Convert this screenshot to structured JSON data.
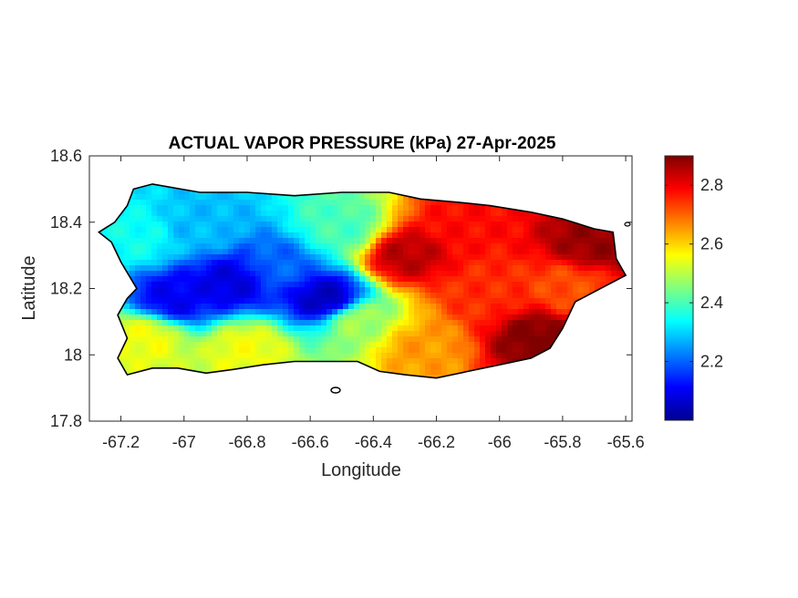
{
  "title": "ACTUAL VAPOR PRESSURE (kPa) 27-Apr-2025",
  "xlabel": "Longitude",
  "ylabel": "Latitude",
  "xlim": [
    -67.3,
    -65.58
  ],
  "ylim": [
    17.8,
    18.6
  ],
  "xticks": [
    {
      "v": -67.2,
      "label": "-67.2"
    },
    {
      "v": -67.0,
      "label": "-67"
    },
    {
      "v": -66.8,
      "label": "-66.8"
    },
    {
      "v": -66.6,
      "label": "-66.6"
    },
    {
      "v": -66.4,
      "label": "-66.4"
    },
    {
      "v": -66.2,
      "label": "-66.2"
    },
    {
      "v": -66.0,
      "label": "-66"
    },
    {
      "v": -65.8,
      "label": "-65.8"
    },
    {
      "v": -65.6,
      "label": "-65.6"
    }
  ],
  "yticks": [
    {
      "v": 17.8,
      "label": "17.8"
    },
    {
      "v": 18.0,
      "label": "18"
    },
    {
      "v": 18.2,
      "label": "18.2"
    },
    {
      "v": 18.4,
      "label": "18.4"
    },
    {
      "v": 18.6,
      "label": "18.6"
    }
  ],
  "colorbar": {
    "colormap": "jet",
    "clim": [
      2.0,
      2.9
    ],
    "ticks": [
      {
        "v": 2.2,
        "label": "2.2"
      },
      {
        "v": 2.4,
        "label": "2.4"
      },
      {
        "v": 2.6,
        "label": "2.6"
      },
      {
        "v": 2.8,
        "label": "2.8"
      }
    ]
  },
  "colors": {
    "outline": "#000000",
    "axes": "#262626",
    "jet": [
      "#00008f",
      "#0000ff",
      "#00ffff",
      "#ffff00",
      "#ff0000",
      "#800000"
    ]
  },
  "island_outline": [
    [
      -67.27,
      18.37
    ],
    [
      -67.22,
      18.4
    ],
    [
      -67.18,
      18.45
    ],
    [
      -67.16,
      18.5
    ],
    [
      -67.1,
      18.515
    ],
    [
      -66.95,
      18.49
    ],
    [
      -66.8,
      18.49
    ],
    [
      -66.65,
      18.48
    ],
    [
      -66.5,
      18.49
    ],
    [
      -66.35,
      18.49
    ],
    [
      -66.25,
      18.47
    ],
    [
      -66.13,
      18.46
    ],
    [
      -66.03,
      18.45
    ],
    [
      -65.9,
      18.43
    ],
    [
      -65.8,
      18.41
    ],
    [
      -65.7,
      18.38
    ],
    [
      -65.64,
      18.37
    ],
    [
      -65.63,
      18.29
    ],
    [
      -65.6,
      18.24
    ],
    [
      -65.66,
      18.21
    ],
    [
      -65.72,
      18.18
    ],
    [
      -65.76,
      18.16
    ],
    [
      -65.8,
      18.08
    ],
    [
      -65.84,
      18.02
    ],
    [
      -65.9,
      17.99
    ],
    [
      -66.0,
      17.97
    ],
    [
      -66.1,
      17.95
    ],
    [
      -66.2,
      17.93
    ],
    [
      -66.3,
      17.94
    ],
    [
      -66.38,
      17.95
    ],
    [
      -66.45,
      17.98
    ],
    [
      -66.55,
      17.98
    ],
    [
      -66.65,
      17.98
    ],
    [
      -66.75,
      17.97
    ],
    [
      -66.85,
      17.955
    ],
    [
      -66.93,
      17.945
    ],
    [
      -67.02,
      17.96
    ],
    [
      -67.1,
      17.96
    ],
    [
      -67.18,
      17.94
    ],
    [
      -67.21,
      17.99
    ],
    [
      -67.18,
      18.05
    ],
    [
      -67.21,
      18.12
    ],
    [
      -67.18,
      18.17
    ],
    [
      -67.15,
      18.2
    ],
    [
      -67.2,
      18.28
    ],
    [
      -67.23,
      18.34
    ]
  ],
  "vapor_field": [
    {
      "lon": -66.85,
      "lat": 18.22,
      "val": 2.08
    },
    {
      "lon": -66.55,
      "lat": 18.17,
      "val": 2.05
    },
    {
      "lon": -67.03,
      "lat": 18.17,
      "val": 2.1
    },
    {
      "lon": -66.7,
      "lat": 18.27,
      "val": 2.2
    },
    {
      "lon": -66.95,
      "lat": 18.38,
      "val": 2.28
    },
    {
      "lon": -67.15,
      "lat": 18.35,
      "val": 2.35
    },
    {
      "lon": -66.5,
      "lat": 18.38,
      "val": 2.4
    },
    {
      "lon": -66.45,
      "lat": 18.1,
      "val": 2.48
    },
    {
      "lon": -67.12,
      "lat": 18.05,
      "val": 2.55
    },
    {
      "lon": -66.8,
      "lat": 18.02,
      "val": 2.55
    },
    {
      "lon": -66.3,
      "lat": 18.3,
      "val": 2.85
    },
    {
      "lon": -66.1,
      "lat": 18.4,
      "val": 2.78
    },
    {
      "lon": -65.7,
      "lat": 18.34,
      "val": 2.88
    },
    {
      "lon": -65.88,
      "lat": 18.05,
      "val": 2.9
    },
    {
      "lon": -66.05,
      "lat": 18.18,
      "val": 2.75
    },
    {
      "lon": -66.25,
      "lat": 18.02,
      "val": 2.65
    },
    {
      "lon": -65.78,
      "lat": 18.2,
      "val": 2.72
    }
  ],
  "field_bias": 2.42
}
